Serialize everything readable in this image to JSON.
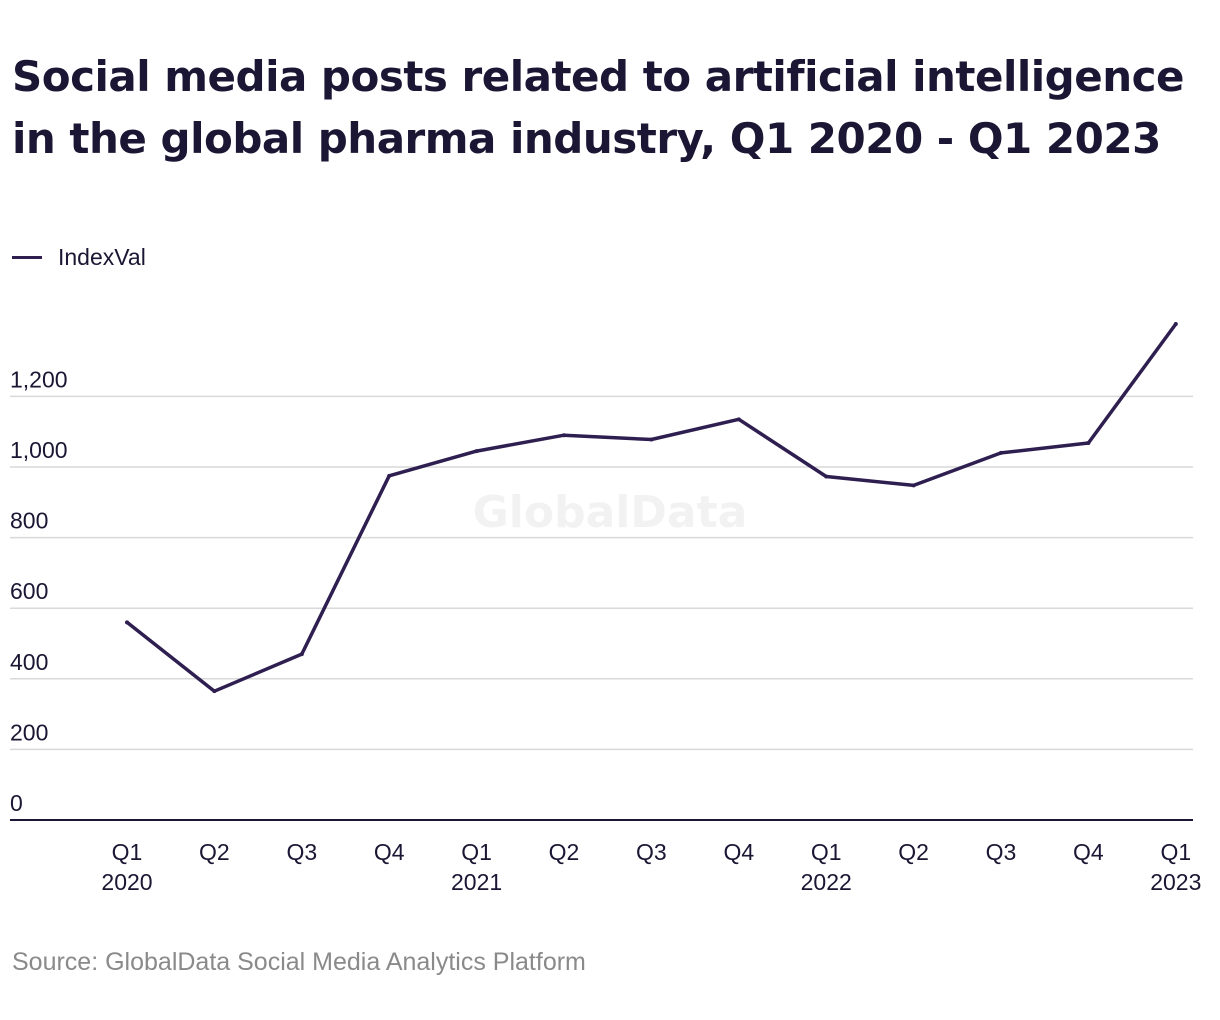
{
  "title": "Social media posts related to artificial intelligence in the global pharma industry, Q1 2020 - Q1 2023",
  "source": "Source: GlobalData Social Media Analytics Platform",
  "watermark": "GlobalData",
  "colors": {
    "line": "#2e1f50",
    "grid": "#d9d9d9",
    "axis": "#1a1633",
    "text": "#1a1633",
    "source_text": "#8a8a8a"
  },
  "chart_data": {
    "type": "line",
    "title": "Social media posts related to artificial intelligence in the global pharma industry, Q1 2020 - Q1 2023",
    "xlabel": "",
    "ylabel": "",
    "legend_position": "top-left",
    "grid": true,
    "ylim": [
      0,
      1400
    ],
    "yticks": [
      0,
      200,
      400,
      600,
      800,
      1000,
      1200
    ],
    "ytick_labels": [
      "0",
      "200",
      "400",
      "600",
      "800",
      "1,000",
      "1,200"
    ],
    "categories": [
      [
        "Q1",
        "2020"
      ],
      [
        "Q2",
        ""
      ],
      [
        "Q3",
        ""
      ],
      [
        "Q4",
        ""
      ],
      [
        "Q1",
        "2021"
      ],
      [
        "Q2",
        ""
      ],
      [
        "Q3",
        ""
      ],
      [
        "Q4",
        ""
      ],
      [
        "Q1",
        "2022"
      ],
      [
        "Q2",
        ""
      ],
      [
        "Q3",
        ""
      ],
      [
        "Q4",
        ""
      ],
      [
        "Q1",
        "2023"
      ]
    ],
    "series": [
      {
        "name": "IndexVal",
        "values": [
          560,
          365,
          470,
          975,
          1045,
          1090,
          1078,
          1135,
          973,
          948,
          1040,
          1068,
          1405
        ]
      }
    ]
  }
}
